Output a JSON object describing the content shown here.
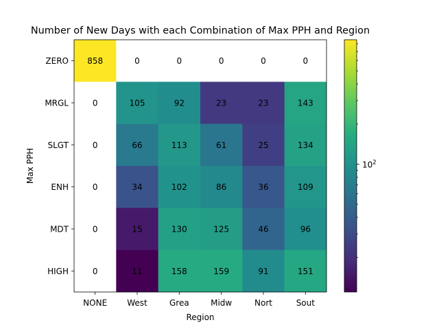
{
  "chart_data": {
    "type": "heatmap",
    "title": "Number of New Days with each Combination of Max PPH and Region",
    "xlabel": "Region",
    "ylabel": "Max PPH",
    "x_categories": [
      "NONE",
      "West",
      "Grea",
      "Midw",
      "Nort",
      "Sout"
    ],
    "y_categories": [
      "ZERO",
      "MRGL",
      "SLGT",
      "ENH",
      "MDT",
      "HIGH"
    ],
    "values": [
      [
        858,
        0,
        0,
        0,
        0,
        0
      ],
      [
        0,
        105,
        92,
        23,
        23,
        143
      ],
      [
        0,
        66,
        113,
        61,
        25,
        134
      ],
      [
        0,
        34,
        102,
        86,
        36,
        109
      ],
      [
        0,
        15,
        130,
        125,
        46,
        96
      ],
      [
        0,
        11,
        158,
        159,
        91,
        151
      ]
    ],
    "zero_cells_color": "#ffffff",
    "colormap": "viridis",
    "color_scale": "log",
    "color_range": [
      11,
      858
    ],
    "colorbar_ticks": [
      100
    ],
    "colorbar_label_base": "10",
    "colorbar_label_exp": "2"
  }
}
